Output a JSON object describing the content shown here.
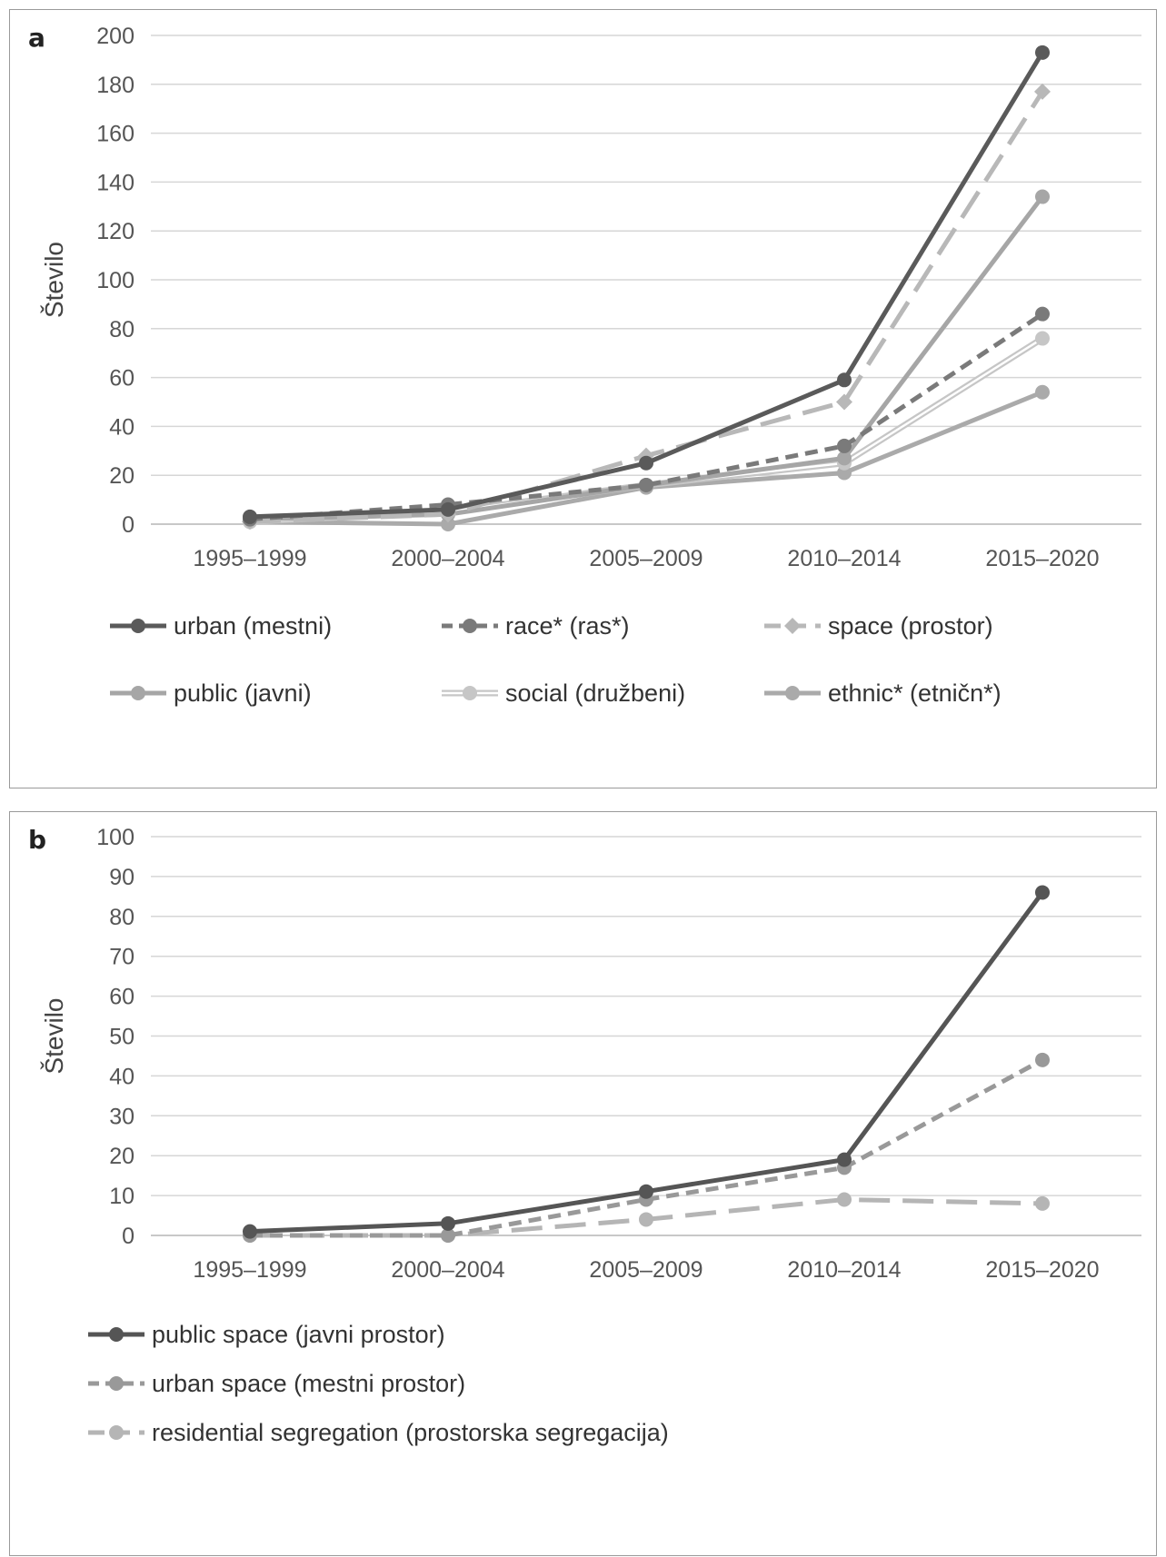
{
  "chart_data": [
    {
      "type": "line",
      "panel_label": "a",
      "title": "",
      "xlabel": "",
      "ylabel": "Število",
      "categories": [
        "1995–1999",
        "2000–2004",
        "2005–2009",
        "2010–2014",
        "2015–2020"
      ],
      "ylim": [
        0,
        200
      ],
      "yticks": [
        0,
        20,
        40,
        60,
        80,
        100,
        120,
        140,
        160,
        180,
        200
      ],
      "grid": true,
      "legend_position": "bottom",
      "series": [
        {
          "name": "urban (mestni)",
          "values": [
            3,
            6,
            25,
            59,
            193
          ],
          "color": "#5a5a5a",
          "style": "solid",
          "marker": "circle"
        },
        {
          "name": "race* (ras*)",
          "values": [
            2,
            8,
            16,
            32,
            86
          ],
          "color": "#7a7a7a",
          "style": "dashed",
          "marker": "circle"
        },
        {
          "name": "space (prostor)",
          "values": [
            1,
            4,
            28,
            50,
            177
          ],
          "color": "#b8b8b8",
          "style": "longdash",
          "marker": "diamond"
        },
        {
          "name": "public (javni)",
          "values": [
            2,
            4,
            16,
            27,
            134
          ],
          "color": "#a6a6a6",
          "style": "solid",
          "marker": "circle"
        },
        {
          "name": "social (družbeni)",
          "values": [
            1,
            5,
            16,
            25,
            76
          ],
          "color": "#c6c6c6",
          "style": "double",
          "marker": "circle"
        },
        {
          "name": "ethnic* (etničn*)",
          "values": [
            1,
            0,
            15,
            21,
            54
          ],
          "color": "#aaaaaa",
          "style": "solid",
          "marker": "circle"
        }
      ]
    },
    {
      "type": "line",
      "panel_label": "b",
      "title": "",
      "xlabel": "",
      "ylabel": "Število",
      "categories": [
        "1995–1999",
        "2000–2004",
        "2005–2009",
        "2010–2014",
        "2015–2020"
      ],
      "ylim": [
        0,
        100
      ],
      "yticks": [
        0,
        10,
        20,
        30,
        40,
        50,
        60,
        70,
        80,
        90,
        100
      ],
      "grid": true,
      "legend_position": "bottom",
      "series": [
        {
          "name": "public space (javni prostor)",
          "values": [
            1,
            3,
            11,
            19,
            86
          ],
          "color": "#555555",
          "style": "solid",
          "marker": "circle"
        },
        {
          "name": "urban space (mestni prostor)",
          "values": [
            0,
            0,
            9,
            17,
            44
          ],
          "color": "#999999",
          "style": "dashed",
          "marker": "circle"
        },
        {
          "name": "residential segregation (prostorska segregacija)",
          "values": [
            0,
            0,
            4,
            9,
            8
          ],
          "color": "#b5b5b5",
          "style": "longdash",
          "marker": "circle"
        }
      ]
    }
  ]
}
